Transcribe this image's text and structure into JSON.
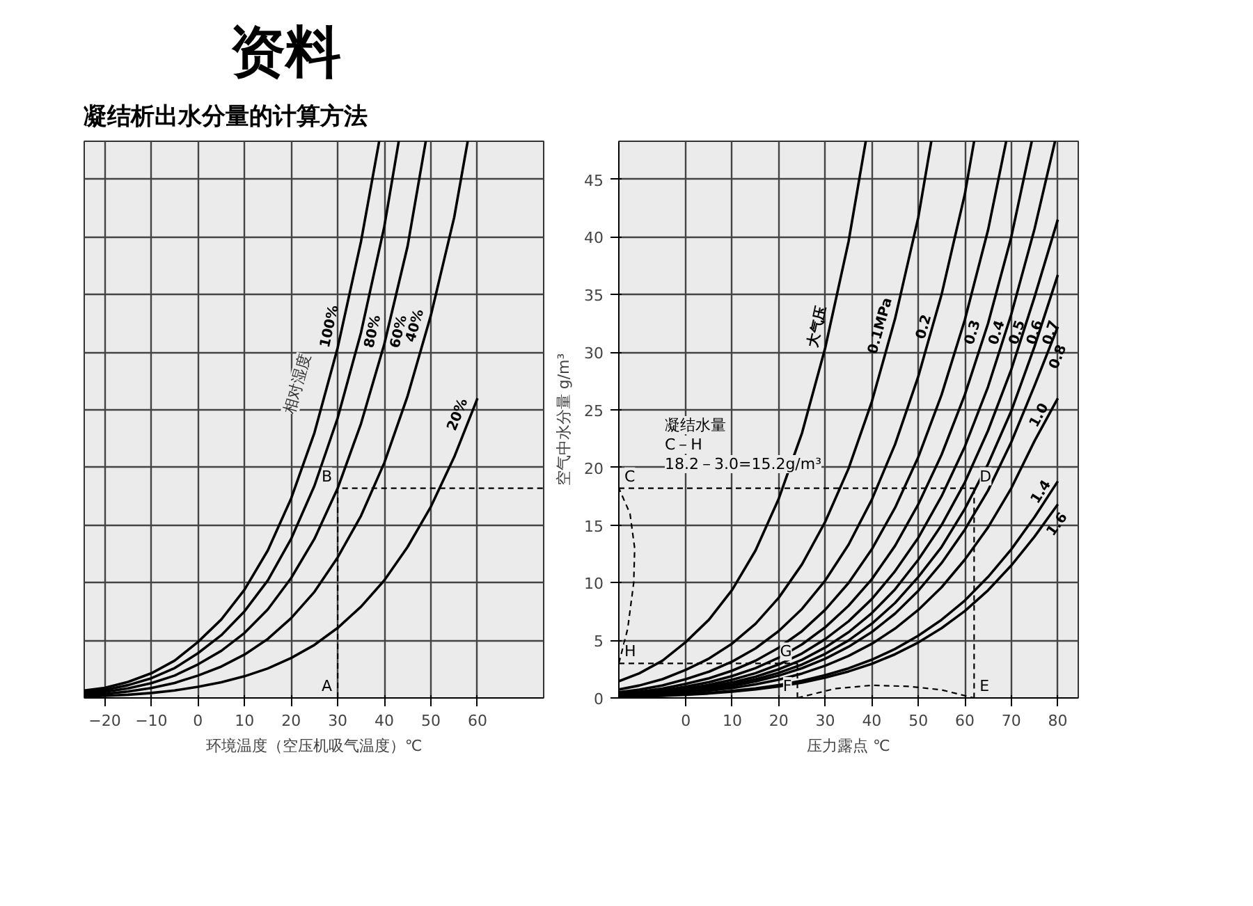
{
  "chart_data": [
    {
      "type": "line",
      "title": "资料",
      "subtitle": "凝结析出水分量的计算方法",
      "xlabel": "环境温度（空压机吸气温度）℃",
      "legend_title": "相对湿度",
      "xlim": [
        -24.4,
        74.2
      ],
      "xticks": [
        {
          "value": -20,
          "label": "−20"
        },
        {
          "value": -10,
          "label": "−10"
        },
        0,
        10,
        20,
        30,
        40,
        50,
        60
      ],
      "ylim": [
        0,
        48.3
      ],
      "yticks": [
        0,
        5,
        10,
        15,
        20,
        25,
        30,
        35,
        40,
        45
      ],
      "grid": true,
      "tick_labels": "x",
      "line_style": "solid",
      "series": [
        {
          "name": "100%",
          "color": "#000000",
          "x": [
            -24.4,
            -20,
            -15,
            -10,
            -5,
            0,
            5,
            10,
            15,
            20,
            25,
            30,
            35,
            38.9
          ],
          "values": [
            0.65,
            0.88,
            1.39,
            2.14,
            3.24,
            4.85,
            6.8,
            9.4,
            12.8,
            17.3,
            23.0,
            30.4,
            39.6,
            48.3
          ]
        },
        {
          "name": "80%",
          "color": "#000000",
          "x": [
            -24.4,
            -20,
            -15,
            -10,
            -5,
            0,
            5,
            10,
            15,
            20,
            25,
            30,
            35,
            40,
            43.1
          ],
          "values": [
            0.52,
            0.7,
            1.11,
            1.71,
            2.59,
            3.88,
            5.44,
            7.52,
            10.2,
            13.8,
            18.4,
            24.3,
            31.7,
            40.9,
            48.3
          ]
        },
        {
          "name": "60%",
          "color": "#000000",
          "x": [
            -24.4,
            -20,
            -15,
            -10,
            -5,
            0,
            5,
            10,
            15,
            20,
            25,
            30,
            35,
            40,
            45,
            48.9
          ],
          "values": [
            0.39,
            0.53,
            0.83,
            1.28,
            1.94,
            2.91,
            4.08,
            5.64,
            7.68,
            10.4,
            13.8,
            18.2,
            23.8,
            30.7,
            39.2,
            48.3
          ]
        },
        {
          "name": "40%",
          "color": "#000000",
          "x": [
            -24.4,
            -20,
            -15,
            -10,
            -5,
            0,
            5,
            10,
            15,
            20,
            25,
            30,
            35,
            40,
            45,
            50,
            55,
            57.9
          ],
          "values": [
            0.26,
            0.35,
            0.56,
            0.86,
            1.3,
            1.94,
            2.72,
            3.76,
            5.12,
            6.92,
            9.2,
            12.2,
            15.8,
            20.4,
            26.2,
            33.2,
            41.7,
            48.3
          ]
        },
        {
          "name": "20%",
          "color": "#000000",
          "x": [
            -24.4,
            -20,
            -15,
            -10,
            -5,
            0,
            5,
            10,
            15,
            20,
            25,
            30,
            35,
            40,
            45,
            50,
            55,
            60
          ],
          "values": [
            0.13,
            0.18,
            0.28,
            0.43,
            0.65,
            0.97,
            1.36,
            1.88,
            2.56,
            3.46,
            4.6,
            6.08,
            7.92,
            10.2,
            13.1,
            16.6,
            20.9,
            26.0
          ]
        },
        {
          "type": "line",
          "line_style": "dashed",
          "color": "#000000",
          "x": [
            30,
            30,
            74.2
          ],
          "values": [
            0,
            18.2,
            18.2
          ]
        }
      ],
      "annotations": [
        {
          "text": "A",
          "x": 30,
          "y": 0
        },
        {
          "text": "B",
          "x": 30,
          "y": 18.2
        }
      ]
    },
    {
      "type": "line",
      "xlabel": "压力露点 ℃",
      "ylabel": "空气中水分量 g/m³",
      "xlim": [
        -14.4,
        84.4
      ],
      "xticks": [
        0,
        10,
        20,
        30,
        40,
        50,
        60,
        70,
        80
      ],
      "ylim": [
        0,
        48.3
      ],
      "yticks": [
        0,
        5,
        10,
        15,
        20,
        25,
        30,
        35,
        40,
        45
      ],
      "grid": true,
      "line_style": "solid",
      "series": [
        {
          "name": "大气压",
          "color": "#000000",
          "x": [
            -14.4,
            -10,
            -5,
            0,
            5,
            10,
            15,
            20,
            25,
            30,
            35,
            38.7
          ],
          "values": [
            1.45,
            2.14,
            3.24,
            4.85,
            6.8,
            9.4,
            12.8,
            17.3,
            23.0,
            30.4,
            39.6,
            48.3
          ]
        },
        {
          "name": "0.1MPa",
          "color": "#000000",
          "x": [
            -14.4,
            -10,
            -5,
            0,
            5,
            10,
            15,
            20,
            25,
            30,
            35,
            40,
            45,
            50,
            52.8
          ],
          "values": [
            0.73,
            1.08,
            1.63,
            2.44,
            3.42,
            4.73,
            6.44,
            8.7,
            11.6,
            15.3,
            19.9,
            25.7,
            32.9,
            41.7,
            48.3
          ]
        },
        {
          "name": "0.2",
          "color": "#000000",
          "x": [
            -14.4,
            -10,
            -5,
            0,
            5,
            10,
            15,
            20,
            25,
            30,
            35,
            40,
            45,
            50,
            55,
            60,
            62.0
          ],
          "values": [
            0.49,
            0.72,
            1.09,
            1.63,
            2.28,
            3.16,
            4.3,
            5.81,
            7.73,
            10.2,
            13.3,
            17.2,
            22.0,
            27.9,
            35.0,
            43.7,
            48.3
          ]
        },
        {
          "name": "0.3",
          "color": "#000000",
          "x": [
            -14.4,
            -10,
            -5,
            0,
            5,
            10,
            15,
            20,
            25,
            30,
            35,
            40,
            45,
            50,
            55,
            60,
            65,
            68.9
          ],
          "values": [
            0.37,
            0.54,
            0.82,
            1.22,
            1.71,
            2.37,
            3.23,
            4.36,
            5.8,
            7.66,
            9.98,
            12.9,
            16.5,
            20.9,
            26.3,
            32.8,
            40.6,
            48.3
          ]
        },
        {
          "name": "0.4",
          "color": "#000000",
          "x": [
            -14.4,
            -10,
            -5,
            0,
            5,
            10,
            15,
            20,
            25,
            30,
            35,
            40,
            45,
            50,
            55,
            60,
            65,
            70,
            74.4
          ],
          "values": [
            0.29,
            0.43,
            0.65,
            0.98,
            1.37,
            1.9,
            2.59,
            3.49,
            4.65,
            6.14,
            8.0,
            10.3,
            13.2,
            16.8,
            21.1,
            26.3,
            32.5,
            40.0,
            48.3
          ]
        },
        {
          "name": "0.5",
          "color": "#000000",
          "x": [
            -14.4,
            -10,
            -5,
            0,
            5,
            10,
            15,
            20,
            25,
            30,
            35,
            40,
            45,
            50,
            55,
            60,
            65,
            70,
            75,
            79.4
          ],
          "values": [
            0.24,
            0.36,
            0.54,
            0.81,
            1.14,
            1.58,
            2.15,
            2.91,
            3.86,
            5.11,
            6.65,
            8.58,
            11.0,
            13.9,
            17.5,
            21.8,
            27.0,
            33.3,
            40.7,
            48.3
          ]
        },
        {
          "name": "0.6",
          "color": "#000000",
          "x": [
            -14.4,
            -10,
            -5,
            0,
            5,
            10,
            15,
            20,
            25,
            30,
            35,
            40,
            45,
            50,
            55,
            60,
            65,
            70,
            75,
            80
          ],
          "values": [
            0.21,
            0.31,
            0.47,
            0.7,
            0.98,
            1.35,
            1.84,
            2.49,
            3.31,
            4.38,
            5.7,
            7.36,
            9.42,
            12.0,
            15.0,
            18.7,
            23.2,
            28.5,
            34.8,
            41.5
          ]
        },
        {
          "name": "0.7",
          "color": "#000000",
          "x": [
            -14.4,
            -10,
            -5,
            0,
            5,
            10,
            15,
            20,
            25,
            30,
            35,
            40,
            45,
            50,
            55,
            60,
            65,
            70,
            75,
            80
          ],
          "values": [
            0.18,
            0.27,
            0.41,
            0.61,
            0.86,
            1.18,
            1.61,
            2.18,
            2.9,
            3.83,
            4.99,
            6.44,
            8.24,
            10.5,
            13.1,
            16.4,
            20.3,
            24.9,
            30.5,
            36.7
          ]
        },
        {
          "name": "0.8",
          "color": "#000000",
          "x": [
            -14.4,
            -10,
            -5,
            0,
            5,
            10,
            15,
            20,
            25,
            30,
            35,
            40,
            45,
            50,
            55,
            60,
            65,
            70,
            75,
            80
          ],
          "values": [
            0.16,
            0.24,
            0.36,
            0.54,
            0.76,
            1.05,
            1.43,
            1.94,
            2.58,
            3.4,
            4.44,
            5.72,
            7.32,
            9.3,
            11.7,
            14.6,
            18.0,
            22.2,
            27.1,
            32.2
          ]
        },
        {
          "name": "1.0",
          "color": "#000000",
          "x": [
            -14.4,
            -10,
            -5,
            0,
            5,
            10,
            15,
            20,
            25,
            30,
            35,
            40,
            45,
            50,
            55,
            60,
            65,
            70,
            75,
            80
          ],
          "values": [
            0.13,
            0.2,
            0.3,
            0.45,
            0.63,
            0.86,
            1.18,
            1.59,
            2.12,
            2.8,
            3.64,
            4.7,
            6.02,
            7.64,
            9.6,
            12.0,
            14.8,
            18.2,
            22.3,
            26.0
          ]
        },
        {
          "name": "1.4",
          "color": "#000000",
          "x": [
            -14.4,
            -10,
            -5,
            0,
            5,
            10,
            15,
            20,
            25,
            30,
            35,
            40,
            45,
            50,
            55,
            60,
            65,
            70,
            75,
            80
          ],
          "values": [
            0.1,
            0.14,
            0.21,
            0.32,
            0.44,
            0.61,
            0.83,
            1.12,
            1.5,
            1.98,
            2.57,
            3.32,
            4.25,
            5.4,
            6.78,
            8.45,
            10.5,
            12.9,
            15.7,
            18.8
          ]
        },
        {
          "name": "1.6",
          "color": "#000000",
          "x": [
            -14.4,
            -10,
            -5,
            0,
            5,
            10,
            15,
            20,
            25,
            30,
            35,
            40,
            45,
            50,
            55,
            60,
            65,
            70,
            75,
            80
          ],
          "values": [
            0.09,
            0.12,
            0.19,
            0.28,
            0.39,
            0.55,
            0.74,
            1.0,
            1.33,
            1.76,
            2.3,
            2.96,
            3.79,
            4.81,
            6.05,
            7.54,
            9.34,
            11.5,
            14.0,
            16.8
          ]
        },
        {
          "type": "line",
          "line_style": "dashed",
          "color": "#000000",
          "x": [
            -14.4,
            62
          ],
          "values": [
            18.2,
            18.2
          ]
        },
        {
          "type": "line",
          "line_style": "dashed",
          "color": "#000000",
          "x": [
            62,
            62
          ],
          "values": [
            18.2,
            0
          ]
        },
        {
          "type": "line",
          "line_style": "dashed",
          "color": "#000000",
          "x": [
            24,
            32,
            40,
            48,
            55,
            62
          ],
          "values": [
            0,
            0.8,
            1.1,
            1.0,
            0.7,
            0
          ]
        },
        {
          "type": "line",
          "line_style": "dashed",
          "color": "#000000",
          "x": [
            24,
            24
          ],
          "values": [
            0,
            3.0
          ]
        },
        {
          "type": "line",
          "line_style": "dashed",
          "color": "#000000",
          "x": [
            -14.4,
            24
          ],
          "values": [
            3.0,
            3.0
          ]
        },
        {
          "type": "line",
          "line_style": "dashed",
          "color": "#000000",
          "x": [
            -14.4,
            -12.5,
            -11.2,
            -11,
            -12,
            -14.4
          ],
          "values": [
            3.0,
            6,
            10,
            13,
            16,
            18.2
          ]
        }
      ],
      "annotations": [
        "凝结水量",
        "C－H",
        "18.2－3.0=15.2g/m³",
        {
          "text": "C",
          "x": -14.4,
          "y": 18.2
        },
        {
          "text": "D",
          "x": 62,
          "y": 18.2
        },
        {
          "text": "E",
          "x": 62,
          "y": 0
        },
        {
          "text": "F",
          "x": 24,
          "y": 0
        },
        {
          "text": "G",
          "x": 24,
          "y": 3.0
        },
        {
          "text": "H",
          "x": -14.4,
          "y": 3.0
        }
      ]
    }
  ]
}
